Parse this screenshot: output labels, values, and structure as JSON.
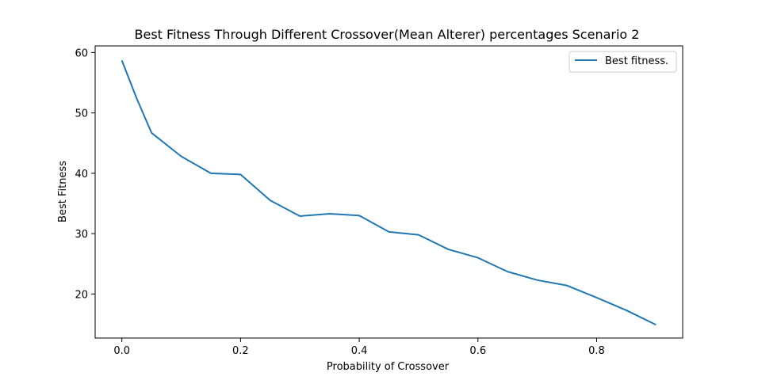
{
  "chart_data": {
    "type": "line",
    "title": "Best Fitness Through Different Crossover(Mean Alterer)  percentages Scenario 2",
    "xlabel": "Probability of Crossover",
    "ylabel": "Best Fitness",
    "xlim": [
      -0.045,
      0.945
    ],
    "ylim": [
      12.7,
      61.1
    ],
    "xticks": [
      0.0,
      0.2,
      0.4,
      0.6,
      0.8
    ],
    "xtick_labels": [
      "0.0",
      "0.2",
      "0.4",
      "0.6",
      "0.8"
    ],
    "yticks": [
      20,
      30,
      40,
      50,
      60
    ],
    "ytick_labels": [
      "20",
      "30",
      "40",
      "50",
      "60"
    ],
    "grid": false,
    "legend_position": "top-right",
    "series": [
      {
        "name": "Best fitness.",
        "color": "#1f77b4",
        "x": [
          0.0,
          0.025,
          0.05,
          0.1,
          0.15,
          0.2,
          0.25,
          0.3,
          0.35,
          0.4,
          0.45,
          0.5,
          0.55,
          0.6,
          0.65,
          0.7,
          0.75,
          0.8,
          0.85,
          0.9
        ],
        "y": [
          58.7,
          52.4,
          46.7,
          42.8,
          40.0,
          39.8,
          35.5,
          32.9,
          33.3,
          33.0,
          30.3,
          29.8,
          27.4,
          26.0,
          23.7,
          22.3,
          21.4,
          19.4,
          17.3,
          14.9
        ]
      }
    ]
  }
}
